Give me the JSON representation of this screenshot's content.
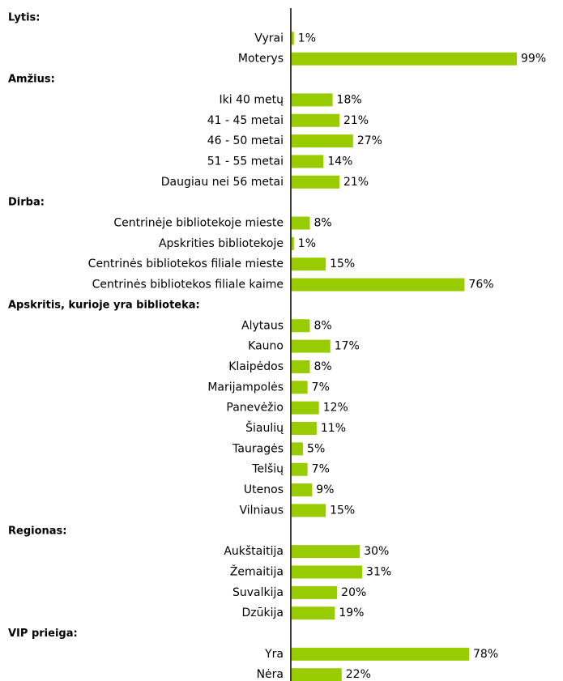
{
  "chart_data": {
    "type": "bar",
    "color": "#99cc00",
    "groups": [
      {
        "title": "Lytis:",
        "categories": [
          "Vyrai",
          "Moterys"
        ],
        "values": [
          1,
          99
        ],
        "value_labels": [
          "1%",
          "99%"
        ]
      },
      {
        "title": "Amžius:",
        "categories": [
          "Iki 40 metų",
          "41 - 45 metai",
          "46 - 50 metai",
          "51 - 55 metai",
          "Daugiau nei 56 metai"
        ],
        "values": [
          18,
          21,
          27,
          14,
          21
        ],
        "value_labels": [
          "18%",
          "21%",
          "27%",
          "14%",
          "21%"
        ]
      },
      {
        "title": "Dirba:",
        "categories": [
          "Centrinėje bibliotekoje mieste",
          "Apskrities bibliotekoje",
          "Centrinės bibliotekos filiale mieste",
          "Centrinės bibliotekos filiale kaime"
        ],
        "values": [
          8,
          1,
          15,
          76
        ],
        "value_labels": [
          "8%",
          "1%",
          "15%",
          "76%"
        ]
      },
      {
        "title": "Apskritis, kurioje yra biblioteka:",
        "categories": [
          "Alytaus",
          "Kauno",
          "Klaipėdos",
          "Marijampolės",
          "Panevėžio",
          "Šiaulių",
          "Tauragės",
          "Telšių",
          "Utenos",
          "Vilniaus"
        ],
        "values": [
          8,
          17,
          8,
          7,
          12,
          11,
          5,
          7,
          9,
          15
        ],
        "value_labels": [
          "8%",
          "17%",
          "8%",
          "7%",
          "12%",
          "11%",
          "5%",
          "7%",
          "9%",
          "15%"
        ]
      },
      {
        "title": "Regionas:",
        "categories": [
          "Aukštaitija",
          "Žemaitija",
          "Suvalkija",
          "Dzūkija"
        ],
        "values": [
          30,
          31,
          20,
          19
        ],
        "value_labels": [
          "30%",
          "31%",
          "20%",
          "19%"
        ]
      },
      {
        "title": "VIP prieiga:",
        "categories": [
          "Yra",
          "Nėra"
        ],
        "values": [
          78,
          22
        ],
        "value_labels": [
          "78%",
          "22%"
        ]
      }
    ]
  }
}
